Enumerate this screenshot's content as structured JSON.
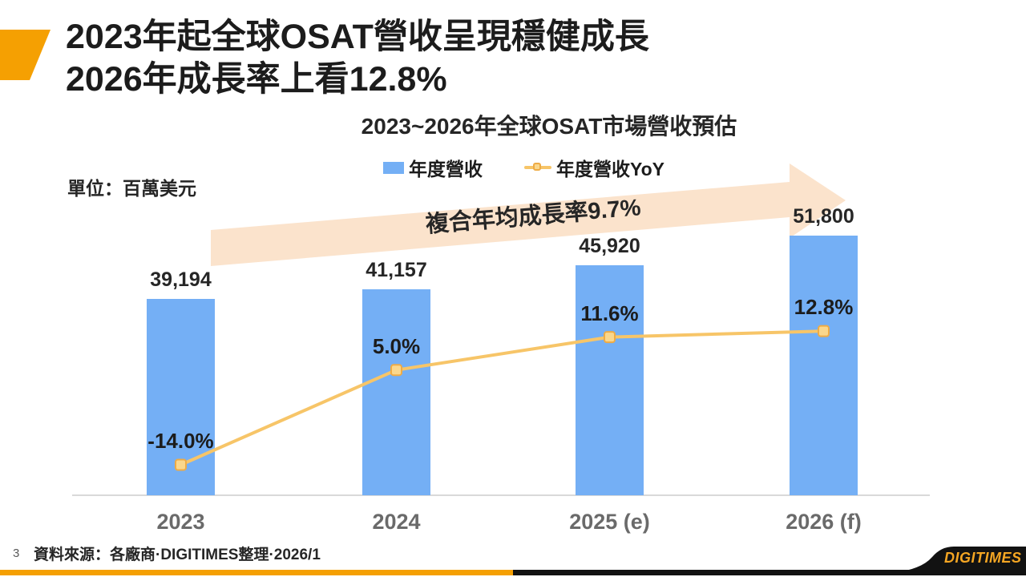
{
  "slide": {
    "title_line1": "2023年起全球OSAT營收呈現穩健成長",
    "title_line2": "2026年成長率上看12.8%",
    "page_number": "3",
    "source": "資料來源：各廠商·DIGITIMES整理·2026/1",
    "logo_text": "DIGITIMES"
  },
  "colors": {
    "bar_blue": "#74AFF5",
    "line_yellow": "#F7C568",
    "marker_fill": "#FAD78C",
    "marker_stroke": "#EEAB45",
    "arrow_peach": "#FBE3CC",
    "accent_orange": "#F5A002",
    "logo_black": "#121212"
  },
  "chart_data": {
    "type": "bar",
    "title": "2023~2026年全球OSAT市場營收預估",
    "unit_label": "單位：百萬美元",
    "categories": [
      "2023",
      "2024",
      "2025 (e)",
      "2026 (f)"
    ],
    "series": [
      {
        "name": "年度營收",
        "type": "bar",
        "color": "#74AFF5",
        "values": [
          39194,
          41157,
          45920,
          51800
        ],
        "labels": [
          "39,194",
          "41,157",
          "45,920",
          "51,800"
        ]
      },
      {
        "name": "年度營收YoY",
        "type": "line",
        "color": "#F7C568",
        "values": [
          -14.0,
          5.0,
          11.6,
          12.8
        ],
        "labels": [
          "-14.0%",
          "5.0%",
          "11.6%",
          "12.8%"
        ]
      }
    ],
    "annotation": "複合年均成長率9.7%",
    "xlabel": "",
    "ylabel": "百萬美元",
    "ylim": [
      0,
      60000
    ],
    "grid": false,
    "legend_position": "top-center"
  }
}
